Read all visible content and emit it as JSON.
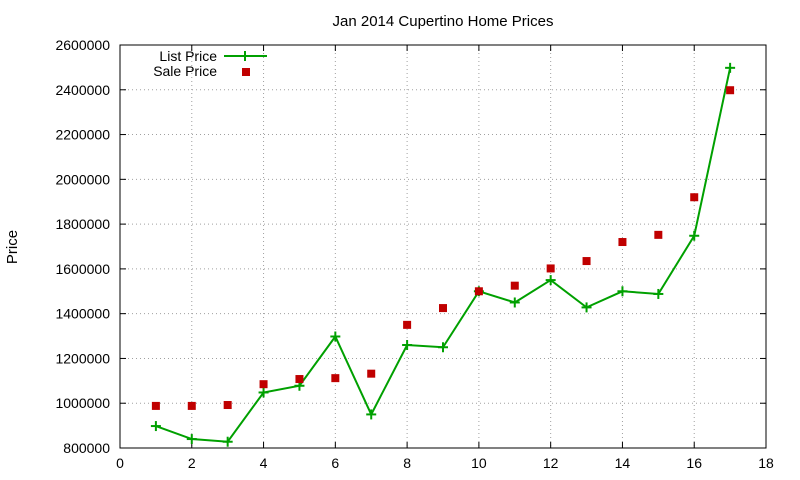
{
  "chart_data": {
    "type": "line",
    "title": "Jan 2014 Cupertino Home Prices",
    "xlabel": "",
    "ylabel": "Price",
    "xlim": [
      0,
      18
    ],
    "ylim": [
      800000,
      2600000
    ],
    "xticks": [
      0,
      2,
      4,
      6,
      8,
      10,
      12,
      14,
      16,
      18
    ],
    "yticks": [
      800000,
      1000000,
      1200000,
      1400000,
      1600000,
      1800000,
      2000000,
      2200000,
      2400000,
      2600000
    ],
    "grid": true,
    "legend_position": "top-left",
    "series": [
      {
        "name": "List Price",
        "style": "line+cross",
        "color": "#00a000",
        "x": [
          1,
          2,
          3,
          4,
          5,
          6,
          7,
          8,
          9,
          10,
          11,
          12,
          13,
          14,
          15,
          16,
          17
        ],
        "y": [
          898000,
          840000,
          828000,
          1048000,
          1078000,
          1298000,
          950000,
          1260000,
          1250000,
          1500000,
          1450000,
          1550000,
          1428000,
          1500000,
          1488000,
          1748000,
          2498000
        ]
      },
      {
        "name": "Sale Price",
        "style": "square",
        "color": "#c00000",
        "x": [
          1,
          2,
          3,
          4,
          5,
          6,
          7,
          8,
          9,
          10,
          11,
          12,
          13,
          14,
          15,
          16,
          17
        ],
        "y": [
          988000,
          988000,
          992000,
          1085000,
          1108000,
          1112000,
          1132000,
          1350000,
          1425000,
          1500000,
          1525000,
          1602000,
          1635000,
          1720000,
          1752000,
          1920000,
          2398000
        ]
      }
    ]
  }
}
